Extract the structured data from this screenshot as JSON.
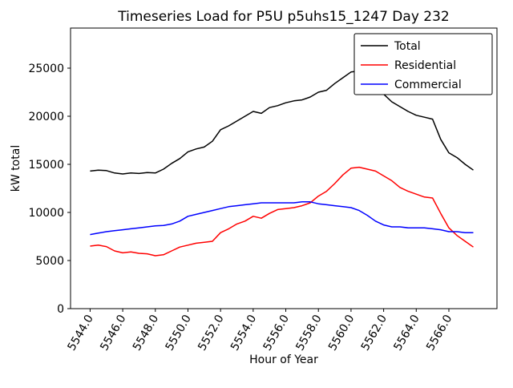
{
  "chart_data": {
    "type": "line",
    "title": "Timeseries Load for P5U p5uhs15_1247  Day 232",
    "xlabel": "Hour of Year",
    "ylabel": "kW total",
    "xlim": [
      5542.8,
      5568.95
    ],
    "ylim": [
      0,
      29167
    ],
    "xticks": [
      5544,
      5546,
      5548,
      5550,
      5552,
      5554,
      5556,
      5558,
      5560,
      5562,
      5564,
      5566
    ],
    "xtick_decimals": 1,
    "yticks": [
      0,
      5000,
      10000,
      15000,
      20000,
      25000
    ],
    "grid": false,
    "legend_position": "upper right",
    "axis_color": "#000000",
    "background_color": "#ffffff",
    "x": [
      5544.0,
      5544.5,
      5545.0,
      5545.5,
      5546.0,
      5546.5,
      5547.0,
      5547.5,
      5548.0,
      5548.5,
      5549.0,
      5549.5,
      5550.0,
      5550.5,
      5551.0,
      5551.5,
      5552.0,
      5552.5,
      5553.0,
      5553.5,
      5554.0,
      5554.5,
      5555.0,
      5555.5,
      5556.0,
      5556.5,
      5557.0,
      5557.5,
      5558.0,
      5558.5,
      5559.0,
      5559.5,
      5560.0,
      5560.5,
      5561.0,
      5561.5,
      5562.0,
      5562.5,
      5563.0,
      5563.5,
      5564.0,
      5564.5,
      5565.0,
      5565.5,
      5566.0,
      5566.5,
      5567.0,
      5567.5
    ],
    "series": [
      {
        "name": "Total",
        "color": "#000000",
        "values": [
          14300,
          14400,
          14350,
          14100,
          14000,
          14100,
          14050,
          14150,
          14100,
          14500,
          15100,
          15600,
          16300,
          16600,
          16800,
          17400,
          18600,
          19000,
          19500,
          20000,
          20500,
          20300,
          20900,
          21100,
          21400,
          21600,
          21700,
          22000,
          22500,
          22700,
          23400,
          24000,
          24600,
          24700,
          23900,
          23300,
          22300,
          21500,
          21000,
          20500,
          20100,
          19900,
          19700,
          17600,
          16200,
          15700,
          15000,
          14400
        ]
      },
      {
        "name": "Residential",
        "color": "#ff0000",
        "values": [
          6500,
          6600,
          6450,
          6000,
          5800,
          5900,
          5750,
          5700,
          5500,
          5600,
          6000,
          6400,
          6600,
          6800,
          6900,
          7000,
          7900,
          8300,
          8800,
          9100,
          9600,
          9400,
          9900,
          10300,
          10400,
          10500,
          10700,
          11000,
          11700,
          12200,
          13000,
          13900,
          14600,
          14700,
          14500,
          14300,
          13800,
          13300,
          12600,
          12200,
          11900,
          11600,
          11500,
          9900,
          8400,
          7600,
          7000,
          6400
        ]
      },
      {
        "name": "Commercial",
        "color": "#0000ff",
        "values": [
          7700,
          7850,
          8000,
          8100,
          8200,
          8300,
          8400,
          8500,
          8600,
          8650,
          8800,
          9100,
          9600,
          9800,
          10000,
          10200,
          10400,
          10600,
          10700,
          10800,
          10900,
          11000,
          11000,
          11000,
          11000,
          11000,
          11100,
          11100,
          10900,
          10800,
          10700,
          10600,
          10500,
          10200,
          9700,
          9100,
          8700,
          8500,
          8500,
          8400,
          8400,
          8400,
          8300,
          8200,
          8000,
          8000,
          7900,
          7900
        ]
      }
    ]
  }
}
